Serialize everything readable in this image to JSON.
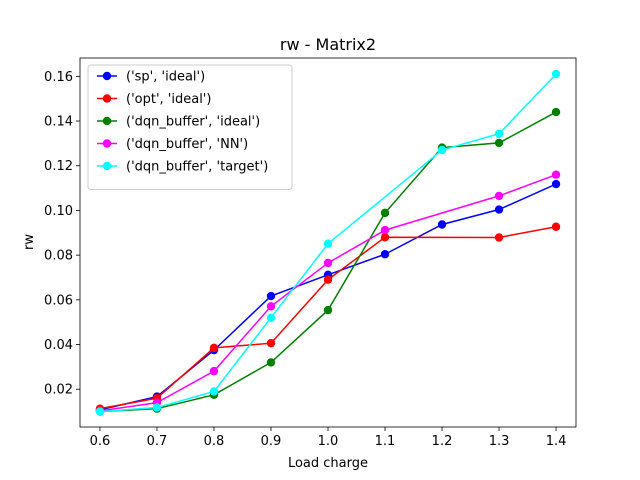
{
  "chart_data": {
    "type": "line",
    "title": "rw - Matrix2",
    "xlabel": "Load charge",
    "ylabel": "rw",
    "x": [
      0.6,
      0.7,
      0.8,
      0.9,
      1.0,
      1.1,
      1.2,
      1.3,
      1.4
    ],
    "xticks": [
      "0.6",
      "0.7",
      "0.8",
      "0.9",
      "1.0",
      "1.1",
      "1.2",
      "1.3",
      "1.4"
    ],
    "yticks": [
      "0.02",
      "0.04",
      "0.06",
      "0.08",
      "0.10",
      "0.12",
      "0.14",
      "0.16"
    ],
    "ytick_values": [
      0.02,
      0.04,
      0.06,
      0.08,
      0.1,
      0.12,
      0.14,
      0.16
    ],
    "xlim": [
      0.565,
      1.435
    ],
    "ylim": [
      0.0031,
      0.1682
    ],
    "grid": false,
    "legend_position": "top-left",
    "series": [
      {
        "name": "('sp', 'ideal')",
        "color": "#0000ff",
        "x": [
          0.6,
          0.7,
          0.8,
          0.9,
          1.0,
          1.1,
          1.2,
          1.3,
          1.4
        ],
        "values": [
          0.0108,
          0.0167,
          0.0375,
          0.0617,
          0.0712,
          0.0804,
          0.0937,
          0.1004,
          0.1118
        ]
      },
      {
        "name": "('opt', 'ideal')",
        "color": "#ff0000",
        "x": [
          0.6,
          0.7,
          0.8,
          0.9,
          1.0,
          1.1,
          1.3,
          1.4
        ],
        "values": [
          0.0113,
          0.016,
          0.0385,
          0.0406,
          0.069,
          0.088,
          0.0879,
          0.0927
        ]
      },
      {
        "name": "('dqn_buffer', 'ideal')",
        "color": "#008000",
        "x": [
          0.6,
          0.7,
          0.8,
          0.9,
          1.0,
          1.1,
          1.2,
          1.3,
          1.4
        ],
        "values": [
          0.01,
          0.0113,
          0.0175,
          0.032,
          0.0554,
          0.0989,
          0.1281,
          0.1302,
          0.144
        ]
      },
      {
        "name": "('dqn_buffer', 'NN')",
        "color": "#ff00ff",
        "x": [
          0.6,
          0.7,
          0.8,
          0.9,
          1.0,
          1.1,
          1.3,
          1.4
        ],
        "values": [
          0.0103,
          0.014,
          0.0281,
          0.0571,
          0.0765,
          0.0912,
          0.1065,
          0.116
        ]
      },
      {
        "name": "('dqn_buffer', 'target')",
        "color": "#00ffff",
        "x": [
          0.6,
          0.7,
          0.8,
          0.9,
          1.0,
          1.2,
          1.3,
          1.4
        ],
        "values": [
          0.01,
          0.0118,
          0.019,
          0.052,
          0.0851,
          0.127,
          0.1343,
          0.161
        ]
      }
    ]
  }
}
